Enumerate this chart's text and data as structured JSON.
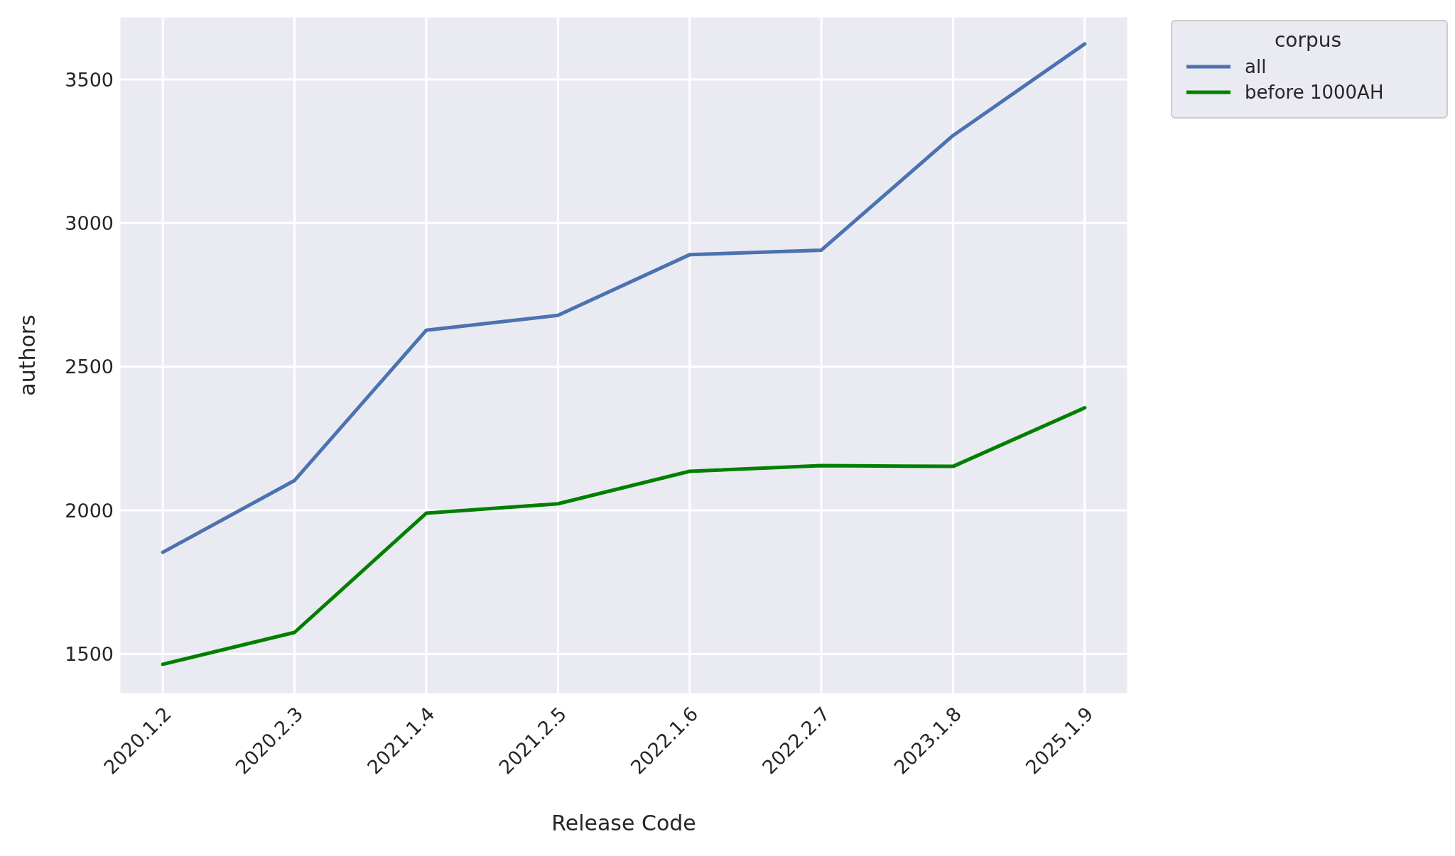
{
  "chart_data": {
    "type": "line",
    "xlabel": "Release Code",
    "ylabel": "authors",
    "legend_title": "corpus",
    "categories": [
      "2020.1.2",
      "2020.2.3",
      "2021.1.4",
      "2021.2.5",
      "2022.1.6",
      "2022.2.7",
      "2023.1.8",
      "2025.1.9"
    ],
    "series": [
      {
        "name": "all",
        "color": "#4c72b0",
        "values": [
          1854,
          2104,
          2627,
          2679,
          2890,
          2906,
          3305,
          3624
        ]
      },
      {
        "name": "before 1000AH",
        "color": "#008000",
        "values": [
          1464,
          1575,
          1990,
          2023,
          2136,
          2156,
          2153,
          2357
        ]
      }
    ],
    "ylim": [
      1360,
      3720
    ],
    "yticks": [
      1500,
      2000,
      2500,
      3000,
      3500
    ],
    "grid": true,
    "legend": "top right",
    "marker": "none",
    "line_style": "solid"
  }
}
